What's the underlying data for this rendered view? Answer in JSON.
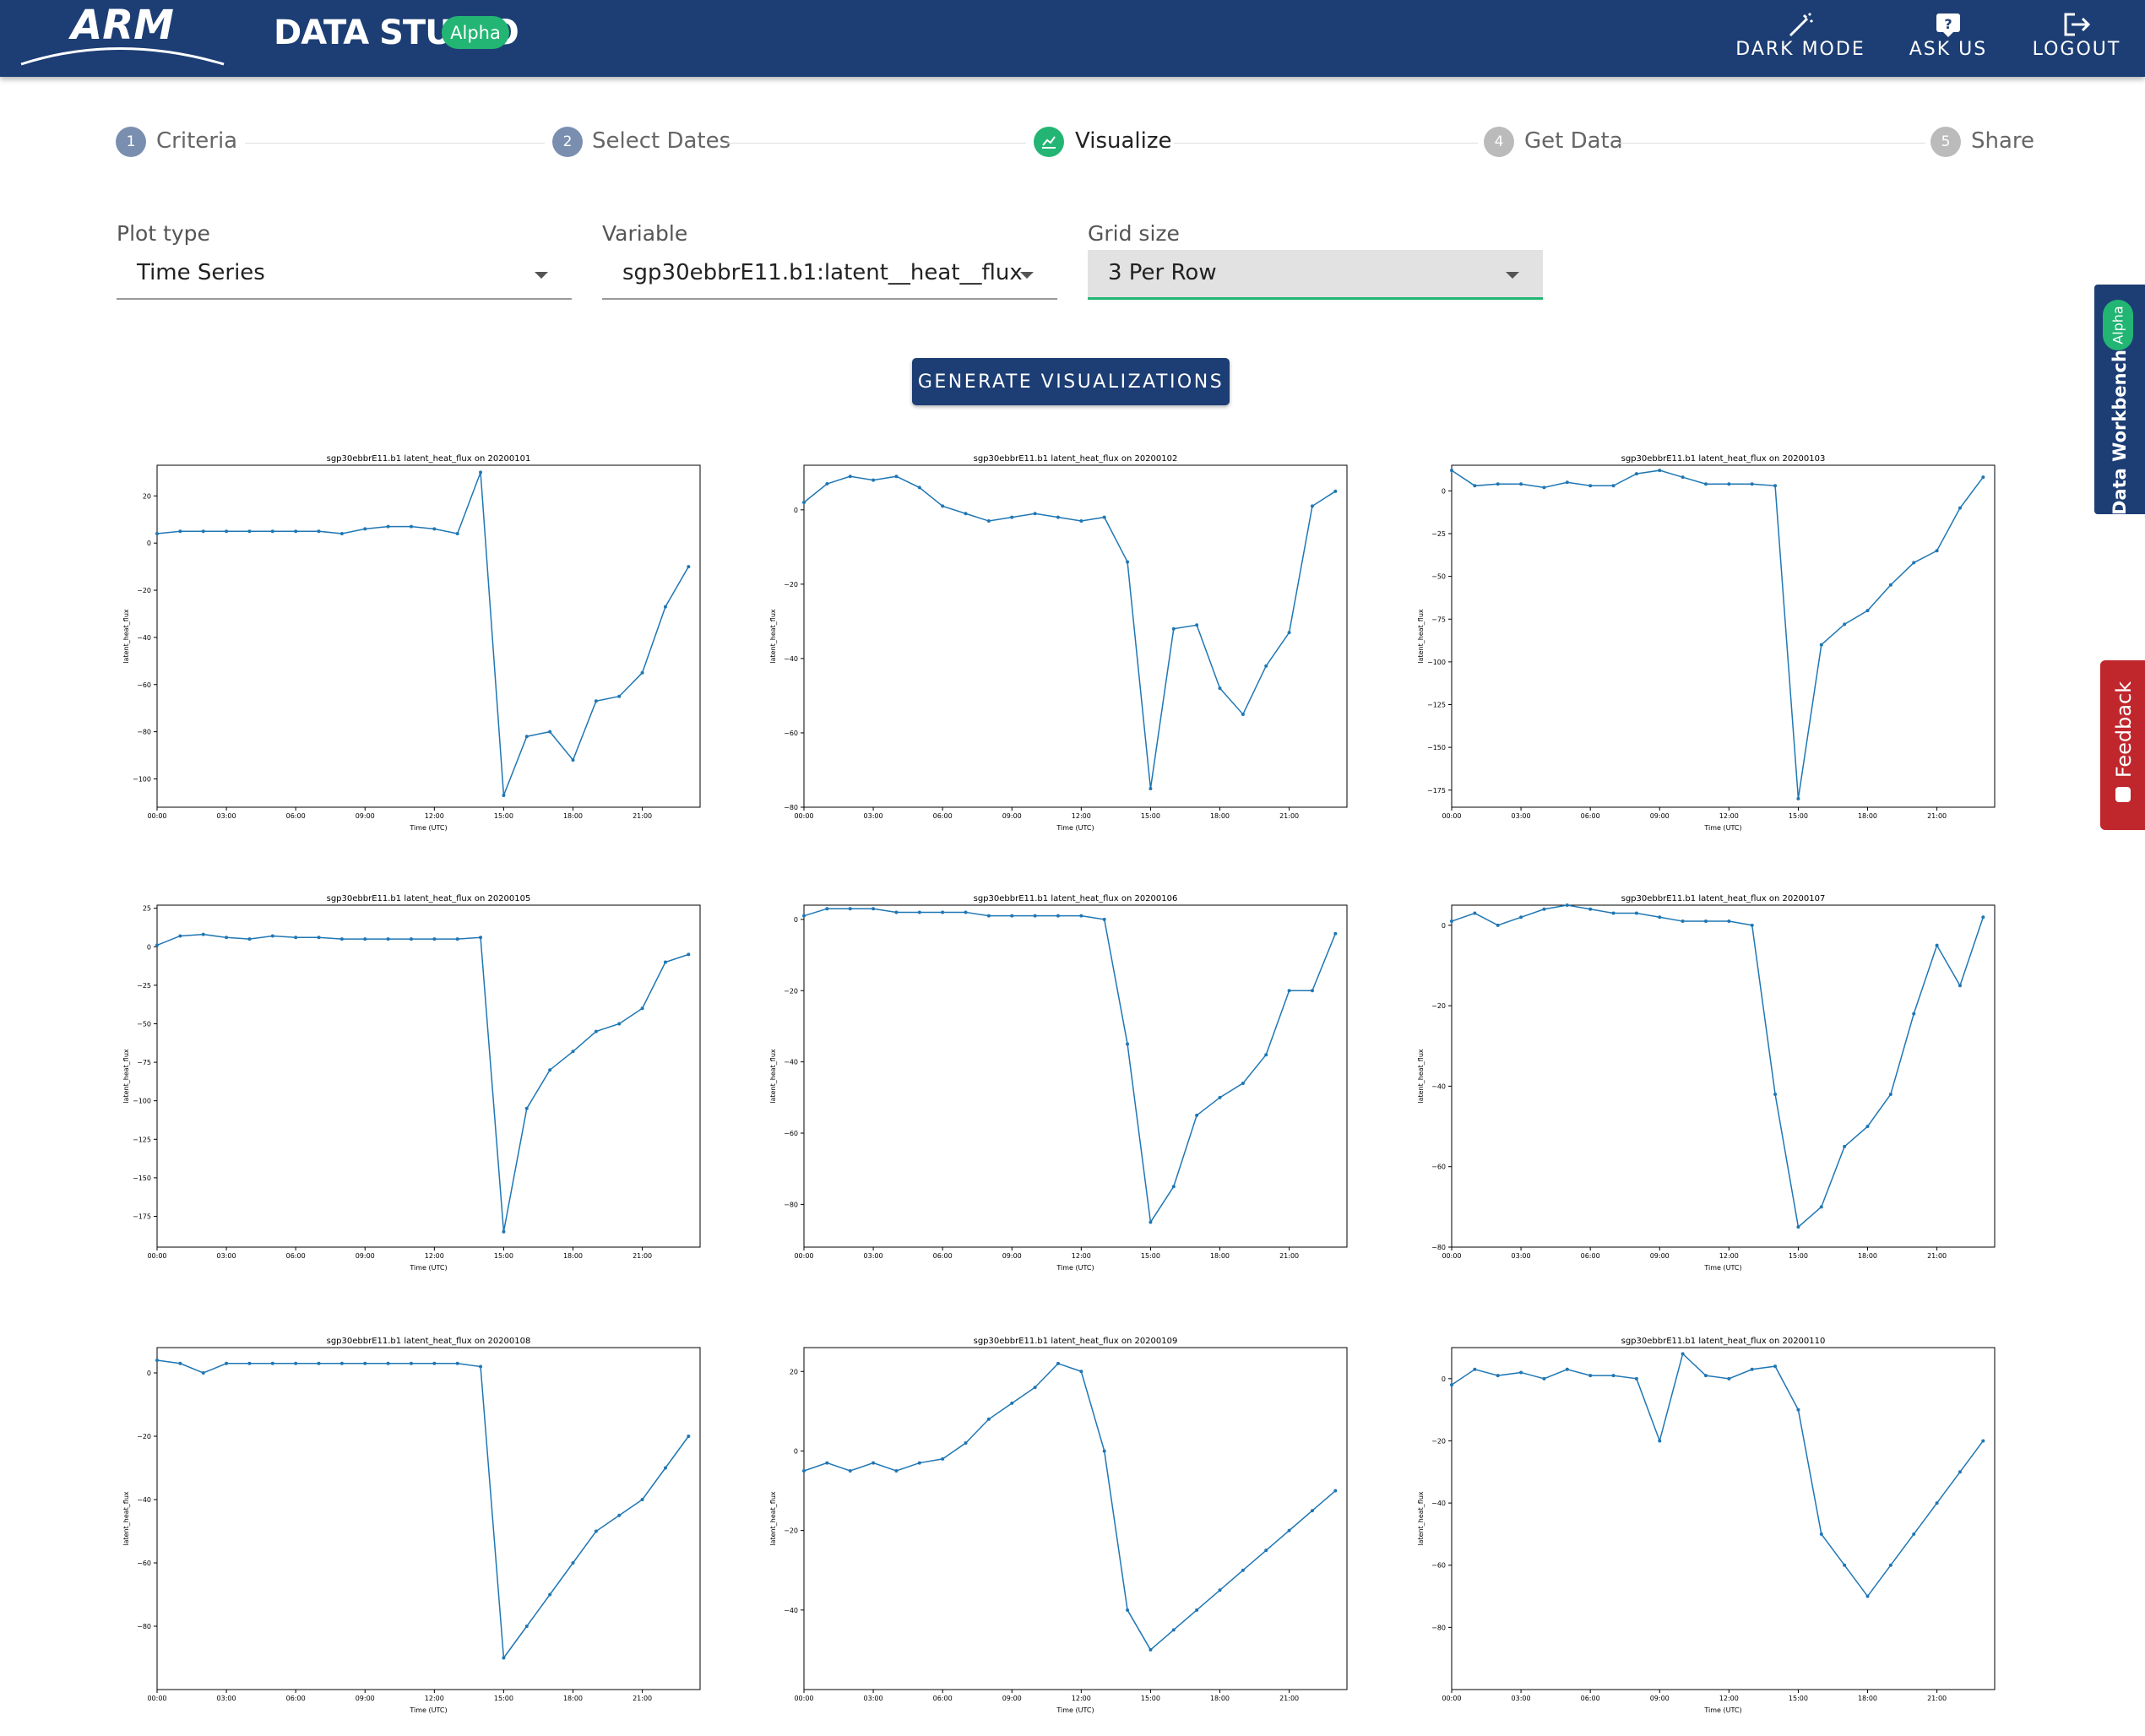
{
  "header": {
    "logo": "ARM",
    "title": "DATA STUDIO",
    "badge": "Alpha",
    "actions": [
      "DARK MODE",
      "ASK US",
      "LOGOUT"
    ]
  },
  "steps": [
    {
      "num": "1",
      "label": "Criteria"
    },
    {
      "num": "2",
      "label": "Select Dates"
    },
    {
      "num": null,
      "label": "Visualize"
    },
    {
      "num": "4",
      "label": "Get Data"
    },
    {
      "num": "5",
      "label": "Share"
    }
  ],
  "form": [
    {
      "label": "Plot type",
      "value": "Time Series"
    },
    {
      "label": "Variable",
      "value": "sgp30ebbrE11.b1:latent__heat__flux"
    },
    {
      "label": "Grid size",
      "value": "3 Per Row"
    }
  ],
  "button": "GENERATE VISUALIZATIONS",
  "side": {
    "workbench": "Data Workbench",
    "badge": "Alpha",
    "feedback": "Feedback"
  },
  "chart_data": [
    {
      "type": "line",
      "title": "sgp30ebbrE11.b1 latent_heat_flux on 20200101",
      "xlabel": "Time (UTC)",
      "ylabel": "latent_heat_flux",
      "color": "#1f77b4",
      "x": [
        0,
        1,
        2,
        3,
        4,
        5,
        6,
        7,
        8,
        9,
        10,
        11,
        12,
        13,
        14,
        15,
        16,
        17,
        18,
        19,
        20,
        21,
        22,
        23
      ],
      "values": [
        4,
        5,
        5,
        5,
        5,
        5,
        5,
        5,
        4,
        6,
        7,
        7,
        6,
        4,
        30,
        -107,
        -82,
        -80,
        -92,
        -67,
        -65,
        -55,
        -27,
        -10
      ],
      "xlim": [
        0,
        23.5
      ],
      "xticks": [
        {
          "value": 0,
          "label": "00:00"
        },
        {
          "value": 3,
          "label": "03:00"
        },
        {
          "value": 6,
          "label": "06:00"
        },
        {
          "value": 9,
          "label": "09:00"
        },
        {
          "value": 12,
          "label": "12:00"
        },
        {
          "value": 15,
          "label": "15:00"
        },
        {
          "value": 18,
          "label": "18:00"
        },
        {
          "value": 21,
          "label": "21:00"
        }
      ],
      "ylim": [
        -112,
        33
      ],
      "yticks": [
        20,
        0,
        {
          "value": -20,
          "label": "−20"
        },
        {
          "value": -40,
          "label": "−40"
        },
        {
          "value": -60,
          "label": "−60"
        },
        {
          "value": -80,
          "label": "−80"
        },
        {
          "value": -100,
          "label": "−100"
        }
      ]
    },
    {
      "type": "line",
      "title": "sgp30ebbrE11.b1 latent_heat_flux on 20200102",
      "xlabel": "Time (UTC)",
      "ylabel": "latent_heat_flux",
      "color": "#1f77b4",
      "x": [
        0,
        1,
        2,
        3,
        4,
        5,
        6,
        7,
        8,
        9,
        10,
        11,
        12,
        13,
        14,
        15,
        16,
        17,
        18,
        19,
        20,
        21,
        22,
        23
      ],
      "values": [
        2,
        7,
        9,
        8,
        9,
        6,
        1,
        -1,
        -3,
        -2,
        -1,
        -2,
        -3,
        -2,
        -14,
        -75,
        -32,
        -31,
        -48,
        -55,
        -42,
        -33,
        1,
        5
      ],
      "xlim": [
        0,
        23.5
      ],
      "xticks": [
        {
          "value": 0,
          "label": "00:00"
        },
        {
          "value": 3,
          "label": "03:00"
        },
        {
          "value": 6,
          "label": "06:00"
        },
        {
          "value": 9,
          "label": "09:00"
        },
        {
          "value": 12,
          "label": "12:00"
        },
        {
          "value": 15,
          "label": "15:00"
        },
        {
          "value": 18,
          "label": "18:00"
        },
        {
          "value": 21,
          "label": "21:00"
        }
      ],
      "ylim": [
        -80,
        12
      ],
      "yticks": [
        0,
        {
          "value": -20,
          "label": "−20"
        },
        {
          "value": -40,
          "label": "−40"
        },
        {
          "value": -60,
          "label": "−60"
        },
        {
          "value": -80,
          "label": "−80"
        }
      ]
    },
    {
      "type": "line",
      "title": "sgp30ebbrE11.b1 latent_heat_flux on 20200103",
      "xlabel": "Time (UTC)",
      "ylabel": "latent_heat_flux",
      "color": "#1f77b4",
      "x": [
        0,
        1,
        2,
        3,
        4,
        5,
        6,
        7,
        8,
        9,
        10,
        11,
        12,
        13,
        14,
        15,
        16,
        17,
        18,
        19,
        20,
        21,
        22,
        23
      ],
      "values": [
        12,
        3,
        4,
        4,
        2,
        5,
        3,
        3,
        10,
        12,
        8,
        4,
        4,
        4,
        3,
        -180,
        -90,
        -78,
        -70,
        -55,
        -42,
        -35,
        -10,
        8
      ],
      "xlim": [
        0,
        23.5
      ],
      "xticks": [
        {
          "value": 0,
          "label": "00:00"
        },
        {
          "value": 3,
          "label": "03:00"
        },
        {
          "value": 6,
          "label": "06:00"
        },
        {
          "value": 9,
          "label": "09:00"
        },
        {
          "value": 12,
          "label": "12:00"
        },
        {
          "value": 15,
          "label": "15:00"
        },
        {
          "value": 18,
          "label": "18:00"
        },
        {
          "value": 21,
          "label": "21:00"
        }
      ],
      "ylim": [
        -185,
        15
      ],
      "yticks": [
        0,
        {
          "value": -25,
          "label": "−25"
        },
        {
          "value": -50,
          "label": "−50"
        },
        {
          "value": -75,
          "label": "−75"
        },
        {
          "value": -100,
          "label": "−100"
        },
        {
          "value": -125,
          "label": "−125"
        },
        {
          "value": -150,
          "label": "−150"
        },
        {
          "value": -175,
          "label": "−175"
        }
      ]
    },
    {
      "type": "line",
      "title": "sgp30ebbrE11.b1 latent_heat_flux on 20200105",
      "xlabel": "Time (UTC)",
      "ylabel": "latent_heat_flux",
      "color": "#1f77b4",
      "x": [
        0,
        1,
        2,
        3,
        4,
        5,
        6,
        7,
        8,
        9,
        10,
        11,
        12,
        13,
        14,
        15,
        16,
        17,
        18,
        19,
        20,
        21,
        22,
        23
      ],
      "values": [
        1,
        7,
        8,
        6,
        5,
        7,
        6,
        6,
        5,
        5,
        5,
        5,
        5,
        5,
        6,
        -185,
        -105,
        -80,
        -68,
        -55,
        -50,
        -40,
        -10,
        -5
      ],
      "xlim": [
        0,
        23.5
      ],
      "xticks": [
        {
          "value": 0,
          "label": "00:00"
        },
        {
          "value": 3,
          "label": "03:00"
        },
        {
          "value": 6,
          "label": "06:00"
        },
        {
          "value": 9,
          "label": "09:00"
        },
        {
          "value": 12,
          "label": "12:00"
        },
        {
          "value": 15,
          "label": "15:00"
        },
        {
          "value": 18,
          "label": "18:00"
        },
        {
          "value": 21,
          "label": "21:00"
        }
      ],
      "ylim": [
        -195,
        27
      ],
      "yticks": [
        25,
        0,
        {
          "value": -25,
          "label": "−25"
        },
        {
          "value": -50,
          "label": "−50"
        },
        {
          "value": -75,
          "label": "−75"
        },
        {
          "value": -100,
          "label": "−100"
        },
        {
          "value": -125,
          "label": "−125"
        },
        {
          "value": -150,
          "label": "−150"
        },
        {
          "value": -175,
          "label": "−175"
        }
      ]
    },
    {
      "type": "line",
      "title": "sgp30ebbrE11.b1 latent_heat_flux on 20200106",
      "xlabel": "Time (UTC)",
      "ylabel": "latent_heat_flux",
      "color": "#1f77b4",
      "x": [
        0,
        1,
        2,
        3,
        4,
        5,
        6,
        7,
        8,
        9,
        10,
        11,
        12,
        13,
        14,
        15,
        16,
        17,
        18,
        19,
        20,
        21,
        22,
        23
      ],
      "values": [
        1,
        3,
        3,
        3,
        2,
        2,
        2,
        2,
        1,
        1,
        1,
        1,
        1,
        0,
        -35,
        -85,
        -75,
        -55,
        -50,
        -46,
        -38,
        -20,
        -20,
        -4
      ],
      "xlim": [
        0,
        23.5
      ],
      "xticks": [
        {
          "value": 0,
          "label": "00:00"
        },
        {
          "value": 3,
          "label": "03:00"
        },
        {
          "value": 6,
          "label": "06:00"
        },
        {
          "value": 9,
          "label": "09:00"
        },
        {
          "value": 12,
          "label": "12:00"
        },
        {
          "value": 15,
          "label": "15:00"
        },
        {
          "value": 18,
          "label": "18:00"
        },
        {
          "value": 21,
          "label": "21:00"
        }
      ],
      "ylim": [
        -92,
        4
      ],
      "yticks": [
        0,
        {
          "value": -20,
          "label": "−20"
        },
        {
          "value": -40,
          "label": "−40"
        },
        {
          "value": -60,
          "label": "−60"
        },
        {
          "value": -80,
          "label": "−80"
        }
      ]
    },
    {
      "type": "line",
      "title": "sgp30ebbrE11.b1 latent_heat_flux on 20200107",
      "xlabel": "Time (UTC)",
      "ylabel": "latent_heat_flux",
      "color": "#1f77b4",
      "x": [
        0,
        1,
        2,
        3,
        4,
        5,
        6,
        7,
        8,
        9,
        10,
        11,
        12,
        13,
        14,
        15,
        16,
        17,
        18,
        19,
        20,
        21,
        22,
        23
      ],
      "values": [
        1,
        3,
        0,
        2,
        4,
        5,
        4,
        3,
        3,
        2,
        1,
        1,
        1,
        0,
        -42,
        -75,
        -70,
        -55,
        -50,
        -42,
        -22,
        -5,
        -15,
        2
      ],
      "xlim": [
        0,
        23.5
      ],
      "xticks": [
        {
          "value": 0,
          "label": "00:00"
        },
        {
          "value": 3,
          "label": "03:00"
        },
        {
          "value": 6,
          "label": "06:00"
        },
        {
          "value": 9,
          "label": "09:00"
        },
        {
          "value": 12,
          "label": "12:00"
        },
        {
          "value": 15,
          "label": "15:00"
        },
        {
          "value": 18,
          "label": "18:00"
        },
        {
          "value": 21,
          "label": "21:00"
        }
      ],
      "ylim": [
        -80,
        5
      ],
      "yticks": [
        0,
        {
          "value": -20,
          "label": "−20"
        },
        {
          "value": -40,
          "label": "−40"
        },
        {
          "value": -60,
          "label": "−60"
        },
        {
          "value": -80,
          "label": "−80"
        }
      ]
    },
    {
      "type": "line",
      "title": "sgp30ebbrE11.b1 latent_heat_flux on 20200108",
      "xlabel": "Time (UTC)",
      "ylabel": "latent_heat_flux",
      "color": "#1f77b4",
      "x": [
        0,
        1,
        2,
        3,
        4,
        5,
        6,
        7,
        8,
        9,
        10,
        11,
        12,
        13,
        14,
        15,
        16,
        17,
        18,
        19,
        20,
        21,
        22,
        23
      ],
      "values": [
        4,
        3,
        0,
        3,
        3,
        3,
        3,
        3,
        3,
        3,
        3,
        3,
        3,
        3,
        2,
        -90,
        -80,
        -70,
        -60,
        -50,
        -45,
        -40,
        -30,
        -20
      ],
      "xlim": [
        0,
        23.5
      ],
      "xticks": [
        {
          "value": 0,
          "label": "00:00"
        },
        {
          "value": 3,
          "label": "03:00"
        },
        {
          "value": 6,
          "label": "06:00"
        },
        {
          "value": 9,
          "label": "09:00"
        },
        {
          "value": 12,
          "label": "12:00"
        },
        {
          "value": 15,
          "label": "15:00"
        },
        {
          "value": 18,
          "label": "18:00"
        },
        {
          "value": 21,
          "label": "21:00"
        }
      ],
      "ylim": [
        -100,
        8
      ],
      "yticks": [
        0,
        {
          "value": -20,
          "label": "−20"
        },
        {
          "value": -40,
          "label": "−40"
        },
        {
          "value": -60,
          "label": "−60"
        },
        {
          "value": -80,
          "label": "−80"
        }
      ]
    },
    {
      "type": "line",
      "title": "sgp30ebbrE11.b1 latent_heat_flux on 20200109",
      "xlabel": "Time (UTC)",
      "ylabel": "latent_heat_flux",
      "color": "#1f77b4",
      "x": [
        0,
        1,
        2,
        3,
        4,
        5,
        6,
        7,
        8,
        9,
        10,
        11,
        12,
        13,
        14,
        15,
        16,
        17,
        18,
        19,
        20,
        21,
        22,
        23
      ],
      "values": [
        -5,
        -3,
        -5,
        -3,
        -5,
        -3,
        -2,
        2,
        8,
        12,
        16,
        22,
        20,
        0,
        -40,
        -50,
        -45,
        -40,
        -35,
        -30,
        -25,
        -20,
        -15,
        -10
      ],
      "xlim": [
        0,
        23.5
      ],
      "xticks": [
        {
          "value": 0,
          "label": "00:00"
        },
        {
          "value": 3,
          "label": "03:00"
        },
        {
          "value": 6,
          "label": "06:00"
        },
        {
          "value": 9,
          "label": "09:00"
        },
        {
          "value": 12,
          "label": "12:00"
        },
        {
          "value": 15,
          "label": "15:00"
        },
        {
          "value": 18,
          "label": "18:00"
        },
        {
          "value": 21,
          "label": "21:00"
        }
      ],
      "ylim": [
        -60,
        26
      ],
      "yticks": [
        20,
        0,
        {
          "value": -20,
          "label": "−20"
        },
        {
          "value": -40,
          "label": "−40"
        }
      ]
    },
    {
      "type": "line",
      "title": "sgp30ebbrE11.b1 latent_heat_flux on 20200110",
      "xlabel": "Time (UTC)",
      "ylabel": "latent_heat_flux",
      "color": "#1f77b4",
      "x": [
        0,
        1,
        2,
        3,
        4,
        5,
        6,
        7,
        8,
        9,
        10,
        11,
        12,
        13,
        14,
        15,
        16,
        17,
        18,
        19,
        20,
        21,
        22,
        23
      ],
      "values": [
        -2,
        3,
        1,
        2,
        0,
        3,
        1,
        1,
        0,
        -20,
        8,
        1,
        0,
        3,
        4,
        -10,
        -50,
        -60,
        -70,
        -60,
        -50,
        -40,
        -30,
        -20
      ],
      "xlim": [
        0,
        23.5
      ],
      "xticks": [
        {
          "value": 0,
          "label": "00:00"
        },
        {
          "value": 3,
          "label": "03:00"
        },
        {
          "value": 6,
          "label": "06:00"
        },
        {
          "value": 9,
          "label": "09:00"
        },
        {
          "value": 12,
          "label": "12:00"
        },
        {
          "value": 15,
          "label": "15:00"
        },
        {
          "value": 18,
          "label": "18:00"
        },
        {
          "value": 21,
          "label": "21:00"
        }
      ],
      "ylim": [
        -100,
        10
      ],
      "yticks": [
        0,
        {
          "value": -20,
          "label": "−20"
        },
        {
          "value": -40,
          "label": "−40"
        },
        {
          "value": -60,
          "label": "−60"
        },
        {
          "value": -80,
          "label": "−80"
        }
      ]
    }
  ]
}
